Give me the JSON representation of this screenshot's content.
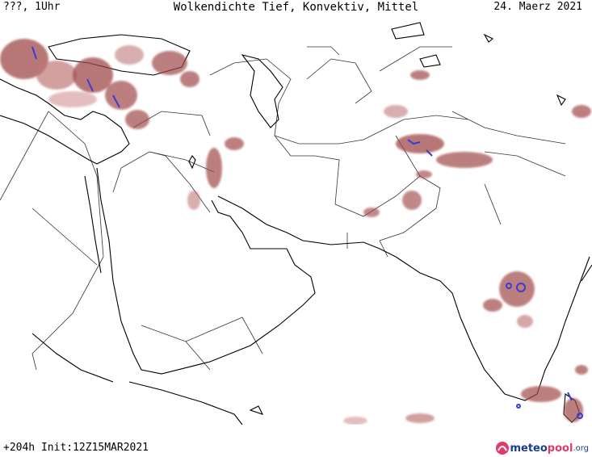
{
  "header": {
    "left": "???, 1Uhr",
    "center": "Wolkendichte  Tief, Konvektiv, Mittel",
    "right": "24. Maerz 2021"
  },
  "footer": {
    "left": "+204h Init:12Z15MAR2021",
    "logo_part1": "meteo",
    "logo_part2": "pool",
    "logo_part3": ".org"
  },
  "colors": {
    "cloud_low": "#a04a4a",
    "cloud_mid": "#c07878",
    "cloud_light": "#d9a3a3",
    "cloud_high": "#3b3bd6",
    "coast": "#000000",
    "borders": "#333333"
  },
  "icons": {
    "logo": "meteopool-logo-icon"
  }
}
